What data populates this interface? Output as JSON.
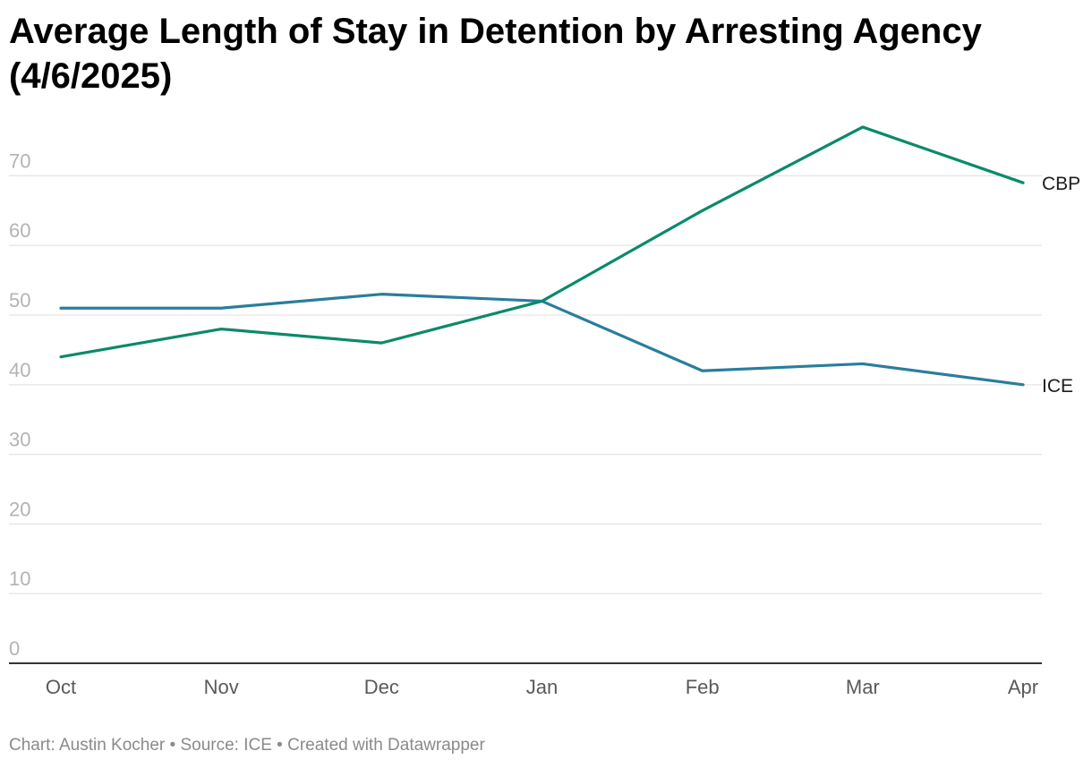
{
  "title": "Average Length of Stay in Detention by Arresting Agency (4/6/2025)",
  "footer": "Chart: Austin Kocher • Source: ICE • Created with Datawrapper",
  "chart_data": {
    "type": "line",
    "title": "Average Length of Stay in Detention by Arresting Agency (4/6/2025)",
    "xlabel": "",
    "ylabel": "",
    "categories": [
      "Oct",
      "Nov",
      "Dec",
      "Jan",
      "Feb",
      "Mar",
      "Apr"
    ],
    "y_ticks": [
      0,
      10,
      20,
      30,
      40,
      50,
      60,
      70
    ],
    "ylim": [
      0,
      70
    ],
    "grid": true,
    "series": [
      {
        "name": "ICE",
        "values": [
          51,
          51,
          53,
          52,
          42,
          43,
          40
        ],
        "color": "#2a7d9c"
      },
      {
        "name": "CBP",
        "values": [
          44,
          48,
          46,
          52,
          65,
          77,
          69
        ],
        "color": "#0a8a6a"
      }
    ]
  }
}
